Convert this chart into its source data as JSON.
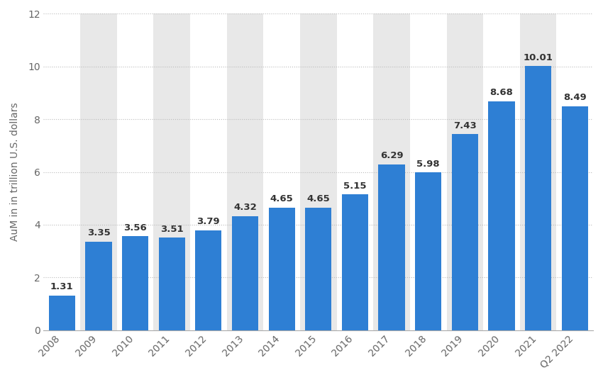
{
  "categories": [
    "2008",
    "2009",
    "2010",
    "2011",
    "2012",
    "2013",
    "2014",
    "2015",
    "2016",
    "2017",
    "2018",
    "2019",
    "2020",
    "2021",
    "Q2 2022"
  ],
  "values": [
    1.31,
    3.35,
    3.56,
    3.51,
    3.79,
    4.32,
    4.65,
    4.65,
    5.15,
    6.29,
    5.98,
    7.43,
    8.68,
    10.01,
    8.49
  ],
  "bar_color": "#2e7fd4",
  "ylabel": "AuM in in trillion U.S. dollars",
  "ylim": [
    0,
    12
  ],
  "yticks": [
    0,
    2,
    4,
    6,
    8,
    10,
    12
  ],
  "figure_bg": "#ffffff",
  "plot_bg_white": "#ffffff",
  "plot_bg_gray": "#e8e8e8",
  "grid_color": "#bbbbbb",
  "label_color": "#666666",
  "bar_label_color": "#333333",
  "bar_label_fontsize": 9.5,
  "ylabel_fontsize": 10,
  "tick_fontsize": 10,
  "bar_width": 0.72
}
